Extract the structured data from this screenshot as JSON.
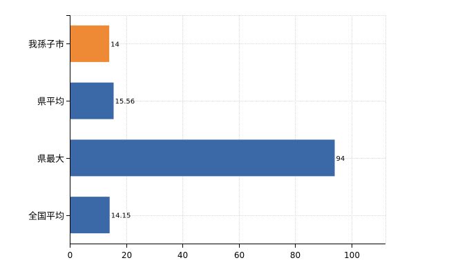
{
  "chart_data": {
    "type": "bar",
    "orientation": "horizontal",
    "categories": [
      "我孫子市",
      "県平均",
      "県最大",
      "全国平均"
    ],
    "values": [
      14,
      15.56,
      94,
      14.15
    ],
    "data_labels": [
      "14",
      "15.56",
      "94",
      "14.15"
    ],
    "bar_colors": [
      "#ee8a35",
      "#3b69a8",
      "#3b69a8",
      "#3b69a8"
    ],
    "xlim": [
      0,
      112
    ],
    "x_ticks": [
      0,
      20,
      40,
      60,
      80,
      100
    ],
    "x_tick_labels": [
      "0",
      "20",
      "40",
      "60",
      "80",
      "100"
    ],
    "grid": true,
    "title": "",
    "xlabel": "",
    "ylabel": ""
  }
}
